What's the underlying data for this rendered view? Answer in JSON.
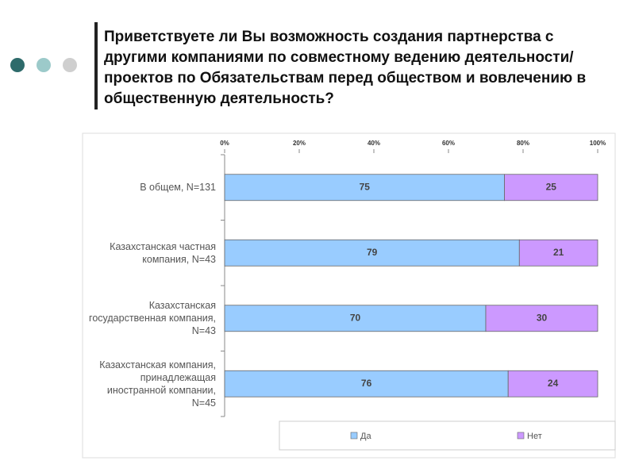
{
  "chart_data": {
    "type": "stacked-barh",
    "title": "Приветствуете ли Вы возможность создания партнерства с другими компаниями по совместному ведению деятельности/проектов по Обязательствам перед обществом и вовлечению в общественную деятельность?",
    "categories": [
      "В общем, N=131",
      "Казахстанская частная компания, N=43",
      "Казахстанская государственная компания, N=43",
      "Казахстанская компания, принадлежащая иностранной компании, N=45"
    ],
    "series": [
      {
        "name": "Да",
        "color": "#99ccff",
        "values": [
          75,
          79,
          70,
          76
        ]
      },
      {
        "name": "Нет",
        "color": "#cc99ff",
        "values": [
          25,
          21,
          30,
          24
        ]
      }
    ],
    "xlim": [
      0,
      100
    ],
    "xticks": [
      {
        "value": 0,
        "label": "0%"
      },
      {
        "value": 20,
        "label": "20%"
      },
      {
        "value": 40,
        "label": "40%"
      },
      {
        "value": 60,
        "label": "60%"
      },
      {
        "value": 80,
        "label": "80%"
      },
      {
        "value": 100,
        "label": "100%"
      }
    ],
    "legend": "bottom"
  }
}
